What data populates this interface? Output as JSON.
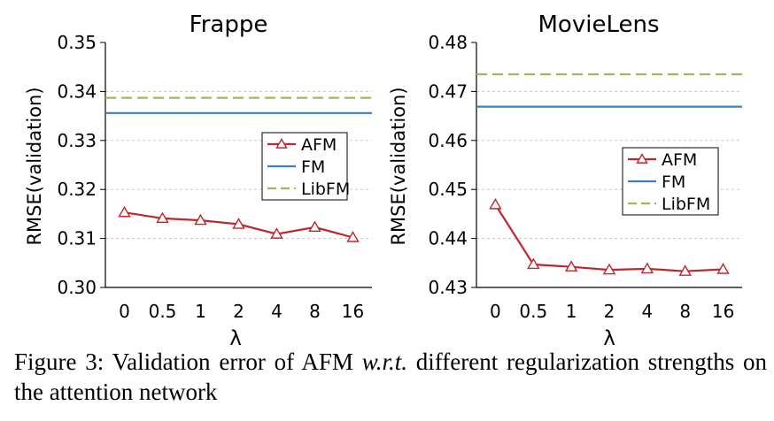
{
  "figure": {
    "caption": {
      "prefix": "Figure 3:  Validation error of AFM ",
      "emph": "w.r.t.",
      "suffix": "  different regularization strengths on the attention network"
    }
  },
  "chart_data": [
    {
      "type": "line",
      "title": "Frappe",
      "xlabel": "λ",
      "ylabel": "RMSE(validation)",
      "categories": [
        "0",
        "0.5",
        "1",
        "2",
        "4",
        "8",
        "16"
      ],
      "ylim": [
        0.3,
        0.35
      ],
      "yticks": [
        "0.30",
        "0.31",
        "0.32",
        "0.33",
        "0.34",
        "0.35"
      ],
      "grid": true,
      "legend_position": "right",
      "series": [
        {
          "name": "AFM",
          "values": [
            0.3153,
            0.3141,
            0.3137,
            0.3129,
            0.3109,
            0.3123,
            0.3102
          ],
          "color": "#c0272d",
          "style": "solid",
          "marker": "triangle"
        },
        {
          "name": "FM",
          "values": [
            0.3356,
            0.3356,
            0.3356,
            0.3356,
            0.3356,
            0.3356,
            0.3356
          ],
          "color": "#3a7dc9",
          "style": "solid",
          "marker": "none"
        },
        {
          "name": "LibFM",
          "values": [
            0.3387,
            0.3387,
            0.3387,
            0.3387,
            0.3387,
            0.3387,
            0.3387
          ],
          "color": "#9bbb59",
          "style": "dashed",
          "marker": "none"
        }
      ]
    },
    {
      "type": "line",
      "title": "MovieLens",
      "xlabel": "λ",
      "ylabel": "RMSE(validation)",
      "categories": [
        "0",
        "0.5",
        "1",
        "2",
        "4",
        "8",
        "16"
      ],
      "ylim": [
        0.43,
        0.48
      ],
      "yticks": [
        "0.43",
        "0.44",
        "0.45",
        "0.46",
        "0.47",
        "0.48"
      ],
      "grid": true,
      "legend_position": "right",
      "series": [
        {
          "name": "AFM",
          "values": [
            0.4469,
            0.4347,
            0.4342,
            0.4336,
            0.4338,
            0.4333,
            0.4337
          ],
          "color": "#c0272d",
          "style": "solid",
          "marker": "triangle"
        },
        {
          "name": "FM",
          "values": [
            0.4669,
            0.4669,
            0.4669,
            0.4669,
            0.4669,
            0.4669,
            0.4669
          ],
          "color": "#3a7dc9",
          "style": "solid",
          "marker": "none"
        },
        {
          "name": "LibFM",
          "values": [
            0.4735,
            0.4735,
            0.4735,
            0.4735,
            0.4735,
            0.4735,
            0.4735
          ],
          "color": "#9bbb59",
          "style": "dashed",
          "marker": "none"
        }
      ]
    }
  ]
}
